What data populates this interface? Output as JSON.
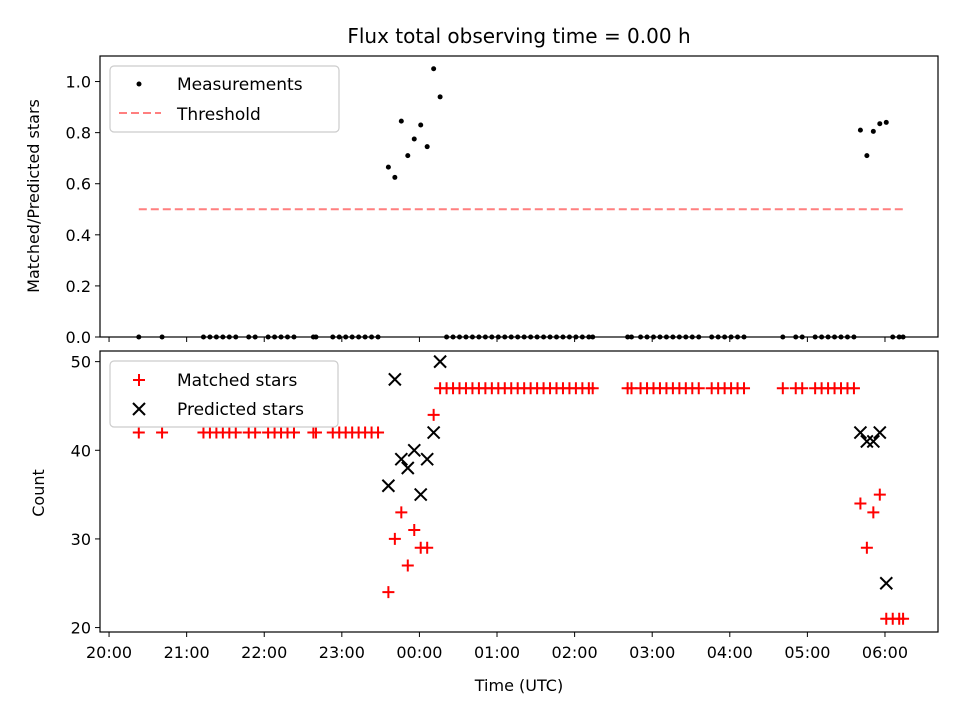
{
  "chart_data": [
    {
      "type": "scatter",
      "title": "Flux total observing time = 0.00 h",
      "xlabel": "",
      "ylabel": "Matched/Predicted stars",
      "xlim": [
        "19:53",
        "06:41"
      ],
      "ylim": [
        0,
        1.1
      ],
      "yticks": [
        "0.0",
        "0.2",
        "0.4",
        "0.6",
        "0.8",
        "1.0"
      ],
      "legend_position": "top-left",
      "series": [
        {
          "name": "Measurements",
          "color": "#000000",
          "marker": "dot",
          "points": [
            [
              "20:23",
              0
            ],
            [
              "20:41",
              0
            ],
            [
              "21:13",
              0
            ],
            [
              "21:18",
              0
            ],
            [
              "21:23",
              0
            ],
            [
              "21:28",
              0
            ],
            [
              "21:33",
              0
            ],
            [
              "21:38",
              0
            ],
            [
              "21:48",
              0
            ],
            [
              "21:53",
              0
            ],
            [
              "22:03",
              0
            ],
            [
              "22:08",
              0
            ],
            [
              "22:13",
              0
            ],
            [
              "22:18",
              0
            ],
            [
              "22:23",
              0
            ],
            [
              "22:38",
              0
            ],
            [
              "22:40",
              0
            ],
            [
              "22:53",
              0
            ],
            [
              "22:58",
              0
            ],
            [
              "23:03",
              0
            ],
            [
              "23:08",
              0
            ],
            [
              "23:13",
              0
            ],
            [
              "23:18",
              0
            ],
            [
              "23:23",
              0
            ],
            [
              "23:28",
              0
            ],
            [
              "23:36",
              0.665
            ],
            [
              "23:41",
              0.625
            ],
            [
              "23:46",
              0.845
            ],
            [
              "23:51",
              0.71
            ],
            [
              "23:56",
              0.775
            ],
            [
              "00:01",
              0.83
            ],
            [
              "00:06",
              0.745
            ],
            [
              "00:11",
              1.05
            ],
            [
              "00:16",
              0.94
            ],
            [
              "00:21",
              0
            ],
            [
              "00:26",
              0
            ],
            [
              "00:31",
              0
            ],
            [
              "00:36",
              0
            ],
            [
              "00:41",
              0
            ],
            [
              "00:46",
              0
            ],
            [
              "00:51",
              0
            ],
            [
              "00:56",
              0
            ],
            [
              "01:01",
              0
            ],
            [
              "01:06",
              0
            ],
            [
              "01:11",
              0
            ],
            [
              "01:16",
              0
            ],
            [
              "01:21",
              0
            ],
            [
              "01:26",
              0
            ],
            [
              "01:31",
              0
            ],
            [
              "01:36",
              0
            ],
            [
              "01:41",
              0
            ],
            [
              "01:46",
              0
            ],
            [
              "01:51",
              0
            ],
            [
              "01:56",
              0
            ],
            [
              "02:01",
              0
            ],
            [
              "02:06",
              0
            ],
            [
              "02:11",
              0
            ],
            [
              "02:14",
              0
            ],
            [
              "02:41",
              0
            ],
            [
              "02:44",
              0
            ],
            [
              "02:51",
              0
            ],
            [
              "02:56",
              0
            ],
            [
              "03:01",
              0
            ],
            [
              "03:06",
              0
            ],
            [
              "03:11",
              0
            ],
            [
              "03:16",
              0
            ],
            [
              "03:21",
              0
            ],
            [
              "03:26",
              0
            ],
            [
              "03:31",
              0
            ],
            [
              "03:36",
              0
            ],
            [
              "03:46",
              0
            ],
            [
              "03:51",
              0
            ],
            [
              "03:56",
              0
            ],
            [
              "04:01",
              0
            ],
            [
              "04:06",
              0
            ],
            [
              "04:11",
              0
            ],
            [
              "04:41",
              0
            ],
            [
              "04:51",
              0
            ],
            [
              "04:56",
              0
            ],
            [
              "05:06",
              0
            ],
            [
              "05:11",
              0
            ],
            [
              "05:16",
              0
            ],
            [
              "05:21",
              0
            ],
            [
              "05:26",
              0
            ],
            [
              "05:31",
              0
            ],
            [
              "05:36",
              0
            ],
            [
              "05:41",
              0.81
            ],
            [
              "05:46",
              0.71
            ],
            [
              "05:51",
              0.805
            ],
            [
              "05:56",
              0.835
            ],
            [
              "06:01",
              0.84
            ],
            [
              "06:06",
              0
            ],
            [
              "06:11",
              0
            ],
            [
              "06:14",
              0
            ]
          ]
        },
        {
          "name": "Threshold",
          "color": "#ff7f7f",
          "style": "dashed",
          "points": [
            [
              "20:23",
              0.5
            ],
            [
              "06:14",
              0.5
            ]
          ]
        }
      ]
    },
    {
      "type": "scatter",
      "title": "",
      "xlabel": "Time (UTC)",
      "ylabel": "Count",
      "xlim": [
        "19:53",
        "06:41"
      ],
      "ylim": [
        19.5,
        51.2
      ],
      "yticks": [
        "20",
        "30",
        "40",
        "50"
      ],
      "xticks": [
        "20:00",
        "21:00",
        "22:00",
        "23:00",
        "00:00",
        "01:00",
        "02:00",
        "03:00",
        "04:00",
        "05:00",
        "06:00"
      ],
      "legend_position": "top-left",
      "series": [
        {
          "name": "Matched stars",
          "color": "#ff0000",
          "marker": "plus",
          "points": [
            [
              "20:23",
              42
            ],
            [
              "20:41",
              42
            ],
            [
              "21:13",
              42
            ],
            [
              "21:18",
              42
            ],
            [
              "21:23",
              42
            ],
            [
              "21:28",
              42
            ],
            [
              "21:33",
              42
            ],
            [
              "21:38",
              42
            ],
            [
              "21:48",
              42
            ],
            [
              "21:53",
              42
            ],
            [
              "22:03",
              42
            ],
            [
              "22:08",
              42
            ],
            [
              "22:13",
              42
            ],
            [
              "22:18",
              42
            ],
            [
              "22:23",
              42
            ],
            [
              "22:38",
              42
            ],
            [
              "22:40",
              42
            ],
            [
              "22:53",
              42
            ],
            [
              "22:58",
              42
            ],
            [
              "23:03",
              42
            ],
            [
              "23:08",
              42
            ],
            [
              "23:13",
              42
            ],
            [
              "23:18",
              42
            ],
            [
              "23:23",
              42
            ],
            [
              "23:28",
              42
            ],
            [
              "23:36",
              24
            ],
            [
              "23:41",
              30
            ],
            [
              "23:46",
              33
            ],
            [
              "23:51",
              27
            ],
            [
              "23:56",
              31
            ],
            [
              "00:01",
              29
            ],
            [
              "00:06",
              29
            ],
            [
              "00:11",
              44
            ],
            [
              "00:16",
              47
            ],
            [
              "00:21",
              47
            ],
            [
              "00:26",
              47
            ],
            [
              "00:31",
              47
            ],
            [
              "00:36",
              47
            ],
            [
              "00:41",
              47
            ],
            [
              "00:46",
              47
            ],
            [
              "00:51",
              47
            ],
            [
              "00:56",
              47
            ],
            [
              "01:01",
              47
            ],
            [
              "01:06",
              47
            ],
            [
              "01:11",
              47
            ],
            [
              "01:16",
              47
            ],
            [
              "01:21",
              47
            ],
            [
              "01:26",
              47
            ],
            [
              "01:31",
              47
            ],
            [
              "01:36",
              47
            ],
            [
              "01:41",
              47
            ],
            [
              "01:46",
              47
            ],
            [
              "01:51",
              47
            ],
            [
              "01:56",
              47
            ],
            [
              "02:01",
              47
            ],
            [
              "02:06",
              47
            ],
            [
              "02:11",
              47
            ],
            [
              "02:14",
              47
            ],
            [
              "02:41",
              47
            ],
            [
              "02:44",
              47
            ],
            [
              "02:51",
              47
            ],
            [
              "02:56",
              47
            ],
            [
              "03:01",
              47
            ],
            [
              "03:06",
              47
            ],
            [
              "03:11",
              47
            ],
            [
              "03:16",
              47
            ],
            [
              "03:21",
              47
            ],
            [
              "03:26",
              47
            ],
            [
              "03:31",
              47
            ],
            [
              "03:36",
              47
            ],
            [
              "03:46",
              47
            ],
            [
              "03:51",
              47
            ],
            [
              "03:56",
              47
            ],
            [
              "04:01",
              47
            ],
            [
              "04:06",
              47
            ],
            [
              "04:11",
              47
            ],
            [
              "04:41",
              47
            ],
            [
              "04:51",
              47
            ],
            [
              "04:56",
              47
            ],
            [
              "05:06",
              47
            ],
            [
              "05:11",
              47
            ],
            [
              "05:16",
              47
            ],
            [
              "05:21",
              47
            ],
            [
              "05:26",
              47
            ],
            [
              "05:31",
              47
            ],
            [
              "05:36",
              47
            ],
            [
              "05:41",
              34
            ],
            [
              "05:46",
              29
            ],
            [
              "05:51",
              33
            ],
            [
              "05:56",
              35
            ],
            [
              "06:01",
              21
            ],
            [
              "06:06",
              21
            ],
            [
              "06:11",
              21
            ],
            [
              "06:14",
              21
            ]
          ]
        },
        {
          "name": "Predicted stars",
          "color": "#000000",
          "marker": "x",
          "points": [
            [
              "23:36",
              36
            ],
            [
              "23:41",
              48
            ],
            [
              "23:46",
              39
            ],
            [
              "23:51",
              38
            ],
            [
              "23:56",
              40
            ],
            [
              "00:01",
              35
            ],
            [
              "00:06",
              39
            ],
            [
              "00:11",
              42
            ],
            [
              "00:16",
              50
            ],
            [
              "05:41",
              42
            ],
            [
              "05:46",
              41
            ],
            [
              "05:51",
              41
            ],
            [
              "05:56",
              42
            ],
            [
              "06:01",
              25
            ]
          ]
        }
      ]
    }
  ]
}
